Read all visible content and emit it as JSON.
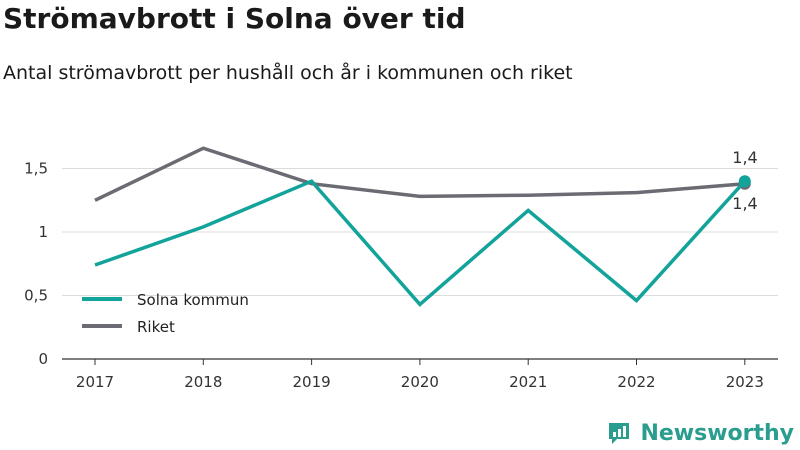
{
  "header": {
    "title": "Strömavbrott i Solna över tid",
    "subtitle": "Antal strömavbrott per hushåll och år i kommunen och riket"
  },
  "brand": {
    "name": "Newsworthy",
    "icon": "newsworthy-logo-icon",
    "color": "#2a9d8f"
  },
  "chart_data": {
    "type": "line",
    "categories": [
      "2017",
      "2018",
      "2019",
      "2020",
      "2021",
      "2022",
      "2023"
    ],
    "series": [
      {
        "name": "Solna kommun",
        "color": "#12a39a",
        "values": [
          0.74,
          1.04,
          1.4,
          0.43,
          1.17,
          0.46,
          1.4
        ]
      },
      {
        "name": "Riket",
        "color": "#6b6b73",
        "values": [
          1.25,
          1.66,
          1.38,
          1.28,
          1.29,
          1.31,
          1.38
        ]
      }
    ],
    "y_ticks": [
      0,
      0.5,
      1,
      1.5
    ],
    "y_tick_labels": [
      "0",
      "0,5",
      "1",
      "1,5"
    ],
    "ylim": [
      0,
      1.75
    ],
    "grid": true,
    "legend_position": "bottom-left",
    "end_labels": [
      "1,4",
      "1,4"
    ],
    "xlabel": "",
    "ylabel": ""
  }
}
